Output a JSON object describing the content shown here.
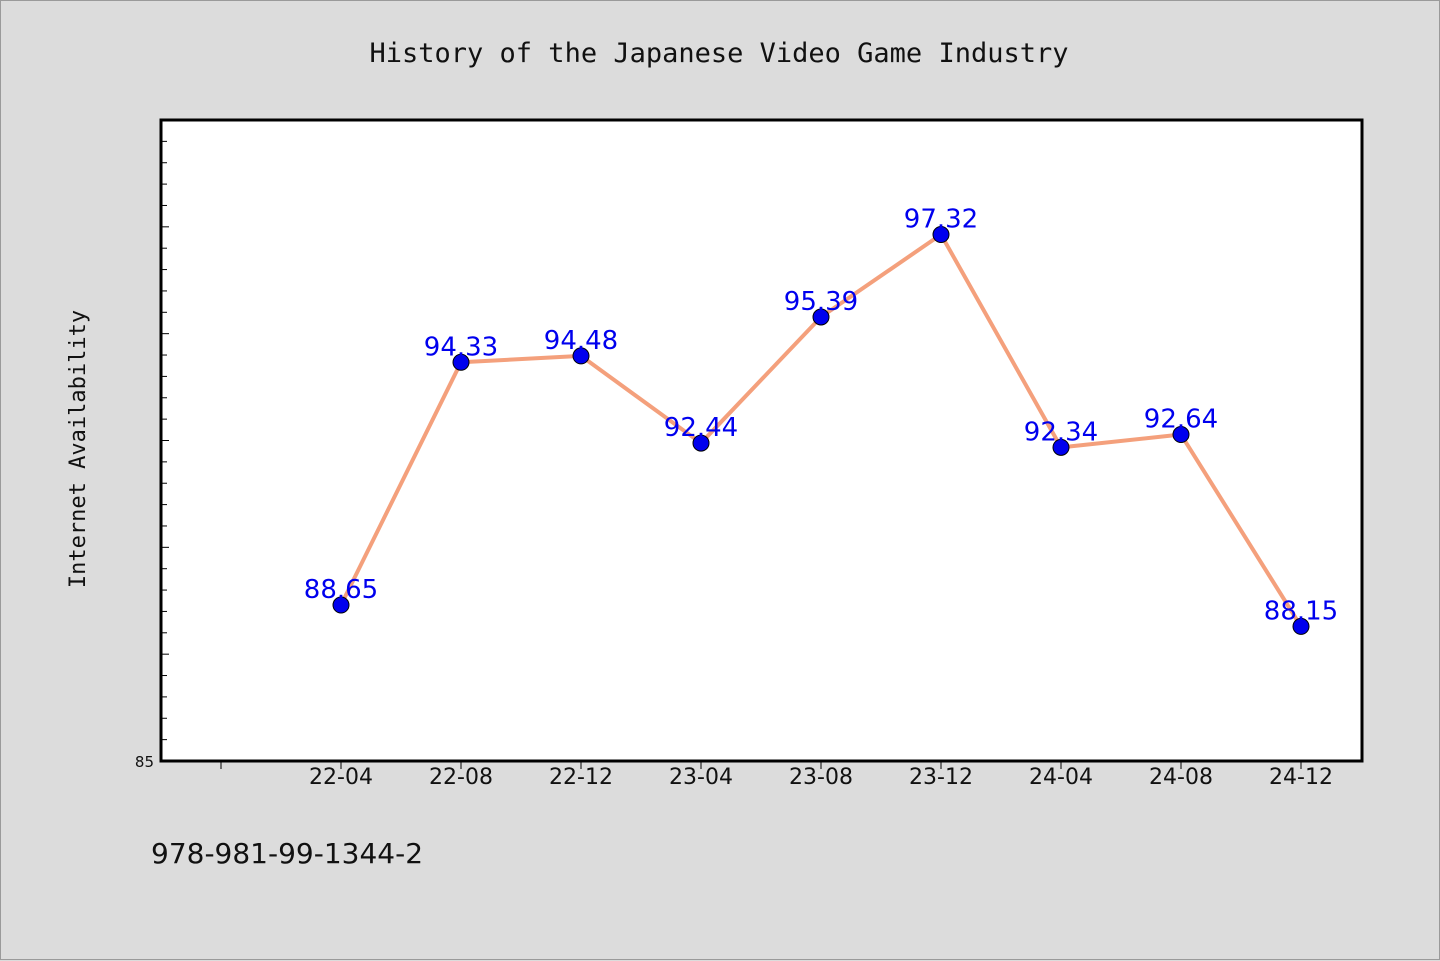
{
  "colors": {
    "background": "#dcdcdc",
    "plot_background": "#ffffff",
    "line": "#f4a07c",
    "marker": "#0000ee",
    "data_label": "#0000ee"
  },
  "footer": {
    "isbn": "978-981-99-1344-2"
  },
  "chart_data": {
    "type": "line",
    "title": "History of the Japanese Video Game Industry",
    "xlabel": "",
    "ylabel": "Internet Availability",
    "categories": [
      "22-04",
      "22-08",
      "22-12",
      "23-04",
      "23-08",
      "23-12",
      "24-04",
      "24-08",
      "24-12"
    ],
    "series": [
      {
        "values": [
          88.65,
          94.33,
          94.48,
          92.44,
          95.39,
          97.32,
          92.34,
          92.64,
          88.15
        ]
      }
    ],
    "ylim": [
      85,
      100
    ],
    "y_tick_labels": [
      "85"
    ],
    "grid": false,
    "legend": "none"
  }
}
